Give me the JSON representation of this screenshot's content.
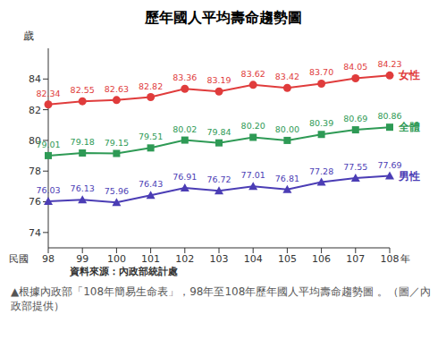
{
  "chart_data": {
    "type": "line",
    "title": "歷年國人平均壽命趨勢圖",
    "y_label": "歲",
    "x_label": "年",
    "annotations": [
      "民國",
      "資料來源：內政部統計處"
    ],
    "categories": [
      "98",
      "99",
      "100",
      "101",
      "102",
      "103",
      "104",
      "105",
      "106",
      "107",
      "108"
    ],
    "series": [
      {
        "name": "女性",
        "color": "#e03c3c",
        "marker": "circle",
        "values": [
          82.34,
          82.55,
          82.63,
          82.82,
          83.36,
          83.19,
          83.62,
          83.42,
          83.7,
          84.05,
          84.23
        ],
        "value_labels": [
          "82.34",
          "82.55",
          "82.63",
          "82.82",
          "83.36",
          "83.19",
          "83.62",
          "83.42",
          "83.70",
          "84.05",
          "84.23"
        ]
      },
      {
        "name": "全體",
        "color": "#2e9a55",
        "marker": "square",
        "values": [
          79.01,
          79.18,
          79.15,
          79.51,
          80.02,
          79.84,
          80.2,
          80.0,
          80.39,
          80.69,
          80.86
        ],
        "value_labels": [
          "79.01",
          "79.18",
          "79.15",
          "79.51",
          "80.02",
          "79.84",
          "80.20",
          "80.00",
          "80.39",
          "80.69",
          "80.86"
        ]
      },
      {
        "name": "男性",
        "color": "#4b3db5",
        "marker": "triangle",
        "values": [
          76.03,
          76.13,
          75.96,
          76.43,
          76.91,
          76.72,
          77.01,
          76.81,
          77.28,
          77.55,
          77.69
        ],
        "value_labels": [
          "76.03",
          "76.13",
          "75.96",
          "76.43",
          "76.91",
          "76.72",
          "77.01",
          "76.81",
          "77.28",
          "77.55",
          "77.69"
        ]
      }
    ],
    "ylim": [
      73,
      86
    ],
    "yticks": [
      74,
      76,
      78,
      80,
      82,
      84
    ],
    "grid": false,
    "data_labels": true
  },
  "caption": "▲根據內政部「108年簡易生命表」，98年至108年歷年國人平均壽命趨勢圖 。（圖／內政部提供）"
}
